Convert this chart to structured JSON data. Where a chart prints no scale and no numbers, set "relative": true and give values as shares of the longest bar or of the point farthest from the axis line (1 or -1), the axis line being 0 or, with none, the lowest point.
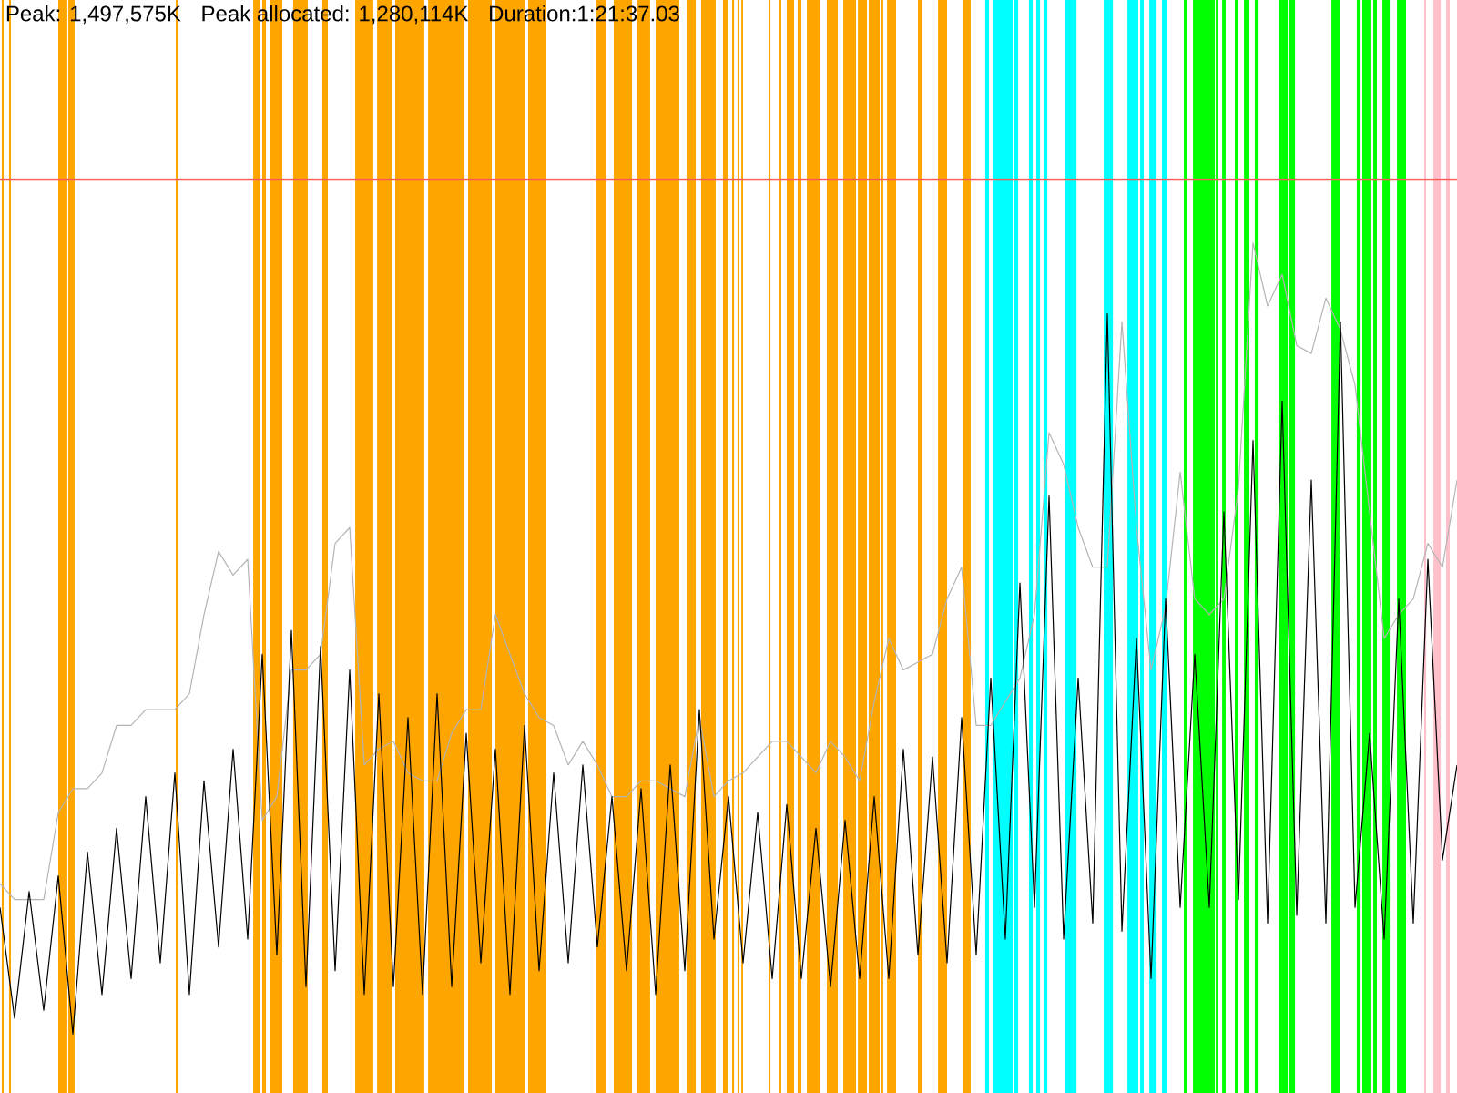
{
  "chart_data": {
    "type": "line",
    "relative": true,
    "annotations": [
      "Peak: 1,497,575K",
      "Peak allocated: 1,280,114K",
      "Duration:1:21:37.03"
    ],
    "categories": [
      null,
      null,
      null,
      null,
      null,
      null,
      null,
      null,
      null,
      null,
      null,
      null,
      null,
      null,
      null,
      null,
      null,
      null,
      null,
      null,
      null,
      null,
      null,
      null,
      null,
      null,
      null,
      null,
      null,
      null,
      null,
      null,
      null,
      null,
      null,
      null,
      null,
      null,
      null,
      null,
      null,
      null,
      null,
      null,
      null,
      null,
      null,
      null,
      null,
      null,
      null,
      null,
      null,
      null,
      null,
      null,
      null,
      null,
      null,
      null,
      null,
      null,
      null,
      null,
      null,
      null,
      null,
      null,
      null,
      null,
      null,
      null,
      null,
      null,
      null,
      null,
      null,
      null,
      null,
      null,
      null,
      null,
      null,
      null,
      null,
      null,
      null,
      null,
      null,
      null,
      null,
      null,
      null,
      null,
      null,
      null,
      null,
      null,
      null,
      null,
      null
    ],
    "series": [
      {
        "color": "#b4b4b4",
        "values": [
          0.19,
          0.17,
          0.17,
          0.17,
          0.28,
          0.31,
          0.31,
          0.33,
          0.39,
          0.39,
          0.41,
          0.41,
          0.41,
          0.43,
          0.53,
          0.61,
          0.58,
          0.6,
          0.27,
          0.3,
          0.46,
          0.46,
          0.48,
          0.62,
          0.64,
          0.34,
          0.36,
          0.37,
          0.33,
          0.32,
          0.32,
          0.38,
          0.41,
          0.41,
          0.53,
          0.48,
          0.43,
          0.4,
          0.39,
          0.34,
          0.37,
          0.34,
          0.3,
          0.3,
          0.32,
          0.32,
          0.31,
          0.3,
          0.4,
          0.3,
          0.32,
          0.33,
          0.35,
          0.37,
          0.37,
          0.35,
          0.33,
          0.37,
          0.35,
          0.32,
          0.42,
          0.5,
          0.46,
          0.47,
          0.48,
          0.55,
          0.59,
          0.39,
          0.39,
          0.42,
          0.45,
          0.53,
          0.76,
          0.72,
          0.64,
          0.59,
          0.59,
          0.9,
          0.64,
          0.46,
          0.54,
          0.71,
          0.55,
          0.53,
          0.55,
          0.69,
          1.0,
          0.92,
          0.96,
          0.87,
          0.86,
          0.93,
          0.89,
          0.82,
          0.66,
          0.5,
          0.53,
          0.55,
          0.62,
          0.59,
          0.7
        ]
      },
      {
        "color": "#000000",
        "values": [
          0.16,
          0.02,
          0.18,
          0.03,
          0.2,
          0.0,
          0.23,
          0.05,
          0.26,
          0.07,
          0.3,
          0.09,
          0.33,
          0.05,
          0.32,
          0.11,
          0.36,
          0.12,
          0.48,
          0.1,
          0.51,
          0.06,
          0.49,
          0.08,
          0.46,
          0.05,
          0.43,
          0.06,
          0.4,
          0.05,
          0.43,
          0.06,
          0.38,
          0.09,
          0.36,
          0.05,
          0.39,
          0.08,
          0.33,
          0.09,
          0.34,
          0.11,
          0.3,
          0.08,
          0.31,
          0.05,
          0.34,
          0.08,
          0.41,
          0.12,
          0.3,
          0.09,
          0.28,
          0.07,
          0.29,
          0.07,
          0.26,
          0.06,
          0.27,
          0.07,
          0.3,
          0.07,
          0.36,
          0.1,
          0.35,
          0.09,
          0.4,
          0.1,
          0.45,
          0.12,
          0.57,
          0.16,
          0.68,
          0.12,
          0.45,
          0.14,
          0.91,
          0.13,
          0.5,
          0.07,
          0.55,
          0.16,
          0.48,
          0.16,
          0.66,
          0.17,
          0.75,
          0.14,
          0.8,
          0.15,
          0.7,
          0.14,
          0.9,
          0.16,
          0.38,
          0.12,
          0.55,
          0.14,
          0.6,
          0.22,
          0.34
        ]
      }
    ],
    "ref_lines": [
      {
        "axis": "y",
        "value": 1.08,
        "color": "#ff5a5a"
      }
    ]
  }
}
